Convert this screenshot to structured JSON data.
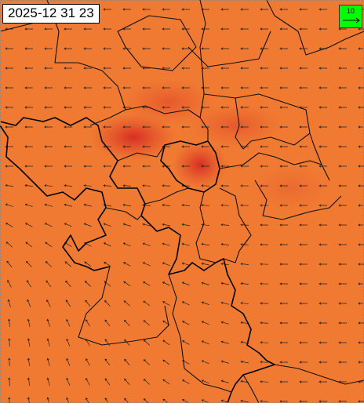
{
  "timestamp": "2025-12 31 23",
  "legend": {
    "scale_label": "10"
  }
}
